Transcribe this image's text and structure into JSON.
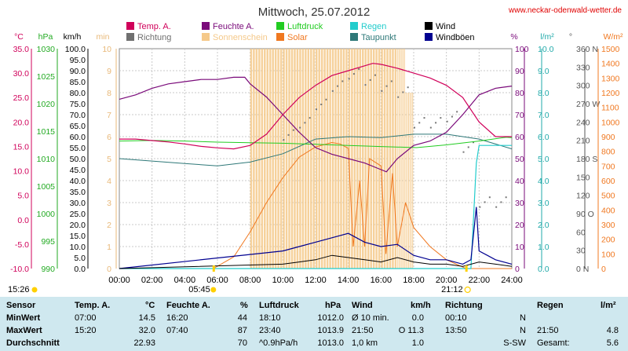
{
  "title": "Mittwoch, 25.07.2012",
  "site": "www.neckar-odenwald-wetter.de",
  "legend": [
    {
      "label": "Temp. A.",
      "color": "#d0005a",
      "col": 0,
      "row": 0
    },
    {
      "label": "Richtung",
      "color": "#707070",
      "col": 0,
      "row": 1
    },
    {
      "label": "Feuchte A.",
      "color": "#7a0a7a",
      "col": 1,
      "row": 0
    },
    {
      "label": "Sonnenschein",
      "color": "#f5c98a",
      "col": 1,
      "row": 1
    },
    {
      "label": "Luftdruck",
      "color": "#22cc22",
      "col": 2,
      "row": 0
    },
    {
      "label": "Solar",
      "color": "#f07820",
      "col": 2,
      "row": 1
    },
    {
      "label": "Regen",
      "color": "#22cccc",
      "col": 3,
      "row": 0
    },
    {
      "label": "Taupunkt",
      "color": "#2e7878",
      "col": 3,
      "row": 1
    },
    {
      "label": "Wind",
      "color": "#000000",
      "col": 4,
      "row": 0
    },
    {
      "label": "Windböen",
      "color": "#000090",
      "col": 4,
      "row": 1
    }
  ],
  "units": {
    "temp": "°C",
    "hpa": "hPa",
    "kmh": "km/h",
    "min": "min",
    "pct": "%",
    "lm2": "l/m²",
    "deg": "°",
    "wm2": "W/m²"
  },
  "axes": {
    "temp": [
      "35.0",
      "30.0",
      "25.0",
      "20.0",
      "15.0",
      "10.0",
      "5.0",
      "0.0",
      "-5.0",
      "-10.0"
    ],
    "hpa": [
      "1030",
      "1025",
      "1020",
      "1015",
      "1010",
      "1005",
      "1000",
      "995",
      "990"
    ],
    "kmh": [
      "100.0",
      "95.0",
      "90.0",
      "85.0",
      "80.0",
      "75.0",
      "70.0",
      "65.0",
      "60.0",
      "55.0",
      "50.0",
      "45.0",
      "40.0",
      "35.0",
      "30.0",
      "25.0",
      "20.0",
      "15.0",
      "10.0",
      "5.0",
      "0.0"
    ],
    "min": [
      "10",
      "9",
      "8",
      "7",
      "6",
      "5",
      "4",
      "3",
      "2",
      "1",
      "0"
    ],
    "pct": [
      "100",
      "90",
      "80",
      "70",
      "60",
      "50",
      "40",
      "30",
      "20",
      "10",
      "0"
    ],
    "lm2": [
      "10.0",
      "9.0",
      "8.0",
      "7.0",
      "6.0",
      "5.0",
      "4.0",
      "3.0",
      "2.0",
      "1.0",
      "0.0"
    ],
    "deg": [
      "360 N",
      "330",
      "300",
      "270 W",
      "240",
      "210",
      "180 S",
      "150",
      "120",
      "90 O",
      "60",
      "30",
      "0 N"
    ],
    "wm2": [
      "1500",
      "1400",
      "1300",
      "1200",
      "1100",
      "1000",
      "900",
      "800",
      "700",
      "600",
      "500",
      "400",
      "300",
      "200",
      "100",
      "0"
    ],
    "time": [
      "00:00",
      "02:00",
      "04:00",
      "06:00",
      "08:00",
      "10:00",
      "12:00",
      "14:00",
      "16:00",
      "18:00",
      "20:00",
      "22:00",
      "24:00"
    ]
  },
  "markers": {
    "moonrise": "15:26",
    "sunrise": "05:45",
    "sunset": "21:12"
  },
  "chart_data": {
    "type": "line",
    "title": "Mittwoch, 25.07.2012",
    "x_unit": "hour of day",
    "xlim": [
      0,
      24
    ],
    "series": [
      {
        "name": "Temp. A.",
        "unit": "°C",
        "ylim": [
          -10,
          35
        ],
        "color": "#d0005a",
        "x": [
          0,
          1,
          2,
          3,
          4,
          5,
          6,
          7,
          8,
          9,
          10,
          11,
          12,
          13,
          14,
          15,
          15.5,
          16,
          17,
          18,
          19,
          20,
          21,
          22,
          23,
          24
        ],
        "y": [
          16.5,
          16.5,
          16.2,
          15.9,
          15.5,
          15.0,
          14.7,
          14.5,
          15.2,
          17.5,
          21.5,
          25.0,
          27.5,
          29.5,
          30.5,
          31.5,
          32.0,
          31.8,
          31.0,
          30.0,
          29.0,
          27.5,
          25.0,
          20.0,
          17.0,
          17.0
        ]
      },
      {
        "name": "Feuchte A.",
        "unit": "%",
        "ylim": [
          0,
          100
        ],
        "color": "#7a0a7a",
        "x": [
          0,
          1,
          2,
          3,
          4,
          5,
          6,
          7,
          7.67,
          8,
          9,
          10,
          11,
          12,
          13,
          14,
          15,
          16,
          16.33,
          17,
          18,
          19,
          20,
          21,
          22,
          23,
          24
        ],
        "y": [
          77,
          79,
          82,
          84,
          85,
          86,
          86,
          87,
          87,
          84,
          78,
          70,
          62,
          55,
          52,
          50,
          48,
          45,
          44,
          50,
          56,
          58,
          62,
          70,
          79,
          82,
          83
        ]
      },
      {
        "name": "Luftdruck",
        "unit": "hPa",
        "ylim": [
          990,
          1030
        ],
        "color": "#22cc22",
        "x": [
          0,
          2,
          4,
          6,
          8,
          10,
          12,
          14,
          16,
          18.17,
          20,
          22,
          23.67,
          24
        ],
        "y": [
          1013.2,
          1013.3,
          1013.2,
          1013.0,
          1012.9,
          1012.8,
          1012.6,
          1012.4,
          1012.2,
          1012.0,
          1012.5,
          1013.2,
          1013.9,
          1013.8
        ]
      },
      {
        "name": "Taupunkt",
        "unit": "°C",
        "ylim": [
          -10,
          35
        ],
        "color": "#2e7878",
        "x": [
          0,
          2,
          4,
          6,
          8,
          10,
          12,
          14,
          16,
          18,
          20,
          22,
          24
        ],
        "y": [
          12.5,
          12.0,
          11.5,
          11.0,
          11.8,
          13.5,
          16.5,
          17.0,
          16.8,
          17.5,
          17.5,
          16.5,
          14.5
        ]
      },
      {
        "name": "Solar",
        "unit": "W/m²",
        "ylim": [
          0,
          1500
        ],
        "color": "#f07820",
        "x": [
          5.75,
          7,
          8,
          9,
          10,
          11,
          12,
          13,
          13.5,
          14,
          14.3,
          14.7,
          15,
          15.3,
          16,
          16.3,
          16.7,
          17,
          17.5,
          18,
          19,
          20,
          21.2,
          24
        ],
        "y": [
          0,
          80,
          250,
          450,
          620,
          760,
          830,
          860,
          850,
          820,
          150,
          600,
          150,
          750,
          700,
          100,
          650,
          150,
          450,
          280,
          150,
          60,
          0,
          0
        ]
      },
      {
        "name": "Sonnenschein",
        "unit": "min",
        "ylim": [
          0,
          10
        ],
        "color": "#f5c98a",
        "x": [
          8,
          9,
          10,
          11,
          12,
          13,
          14,
          15,
          16,
          17,
          17.5,
          18
        ],
        "y": [
          10,
          10,
          10,
          10,
          10,
          10,
          10,
          10,
          10,
          10,
          8,
          0
        ]
      },
      {
        "name": "Regen",
        "unit": "l/m²",
        "ylim": [
          0,
          10
        ],
        "color": "#22cccc",
        "x": [
          0,
          21.5,
          21.83,
          22,
          24
        ],
        "y": [
          0,
          0,
          4.8,
          5.6,
          5.6
        ]
      },
      {
        "name": "Wind",
        "unit": "km/h",
        "ylim": [
          0,
          100
        ],
        "color": "#000000",
        "x": [
          0,
          10,
          11,
          12,
          13,
          14,
          15,
          16,
          17,
          18,
          19,
          20,
          21,
          22,
          23,
          24
        ],
        "y": [
          0,
          2,
          3,
          4,
          6,
          5,
          4,
          3,
          5,
          3,
          2,
          2,
          1,
          3,
          2,
          1
        ]
      },
      {
        "name": "Windböen",
        "unit": "km/h",
        "ylim": [
          0,
          100
        ],
        "color": "#000090",
        "x": [
          0,
          10,
          11,
          12,
          13,
          14,
          15,
          16,
          17,
          18,
          19,
          20,
          21,
          21.5,
          21.83,
          22,
          22.5,
          23,
          24
        ],
        "y": [
          0,
          8,
          10,
          12,
          14,
          16,
          12,
          10,
          11,
          6,
          4,
          4,
          2,
          4,
          28,
          8,
          6,
          4,
          2
        ]
      },
      {
        "name": "Richtung",
        "unit": "°",
        "ylim": [
          0,
          360
        ],
        "x": [
          10,
          11,
          12,
          13,
          14,
          15,
          16,
          17,
          18,
          19,
          20,
          21,
          22,
          23
        ],
        "y": [
          220,
          240,
          270,
          300,
          320,
          310,
          300,
          290,
          240,
          240,
          250,
          200,
          110,
          110
        ]
      }
    ]
  },
  "stats": {
    "col_headers": [
      {
        "label": "Sensor",
        "x": 8
      },
      {
        "label": "Temp. A.",
        "x": 95
      },
      {
        "label": "°C",
        "x": 185
      },
      {
        "label": "Feuchte A.",
        "x": 212
      },
      {
        "label": "%",
        "x": 306
      },
      {
        "label": "Luftdruck",
        "x": 330
      },
      {
        "label": "hPa",
        "x": 414
      },
      {
        "label": "Wind",
        "x": 448
      },
      {
        "label": "km/h",
        "x": 523
      },
      {
        "label": "Richtung",
        "x": 567
      },
      {
        "label": "Regen",
        "x": 684
      },
      {
        "label": "l/m²",
        "x": 765
      }
    ],
    "rows": [
      {
        "label": "MinWert",
        "temp_time": "07:00",
        "temp_val": "14.5",
        "hum_time": "16:20",
        "hum_val": "44",
        "pres_time": "18:10",
        "pres_val": "1012.0",
        "wind_time": "Ø 10 min.",
        "wind_val": "0.0",
        "dir_time": "00:10",
        "dir_val": "N",
        "rain_time": "",
        "rain_val": ""
      },
      {
        "label": "MaxWert",
        "temp_time": "15:20",
        "temp_val": "32.0",
        "hum_time": "07:40",
        "hum_val": "87",
        "pres_time": "23:40",
        "pres_val": "1013.9",
        "wind_time": "21:50",
        "wind_val": "O 11.3",
        "dir_time": "13:50",
        "dir_val": "N",
        "rain_time": "21:50",
        "rain_val": "4.8"
      },
      {
        "label": "Durchschnitt",
        "temp_time": "",
        "temp_val": "22.93",
        "hum_time": "",
        "hum_val": "70",
        "pres_time": "^0.9hPa/h",
        "pres_val": "1013.0",
        "wind_time": "1,0 km",
        "wind_val": "1.0",
        "dir_time": "",
        "dir_val": "S-SW",
        "rain_time": "Gesamt:",
        "rain_val": "5.6"
      }
    ]
  }
}
